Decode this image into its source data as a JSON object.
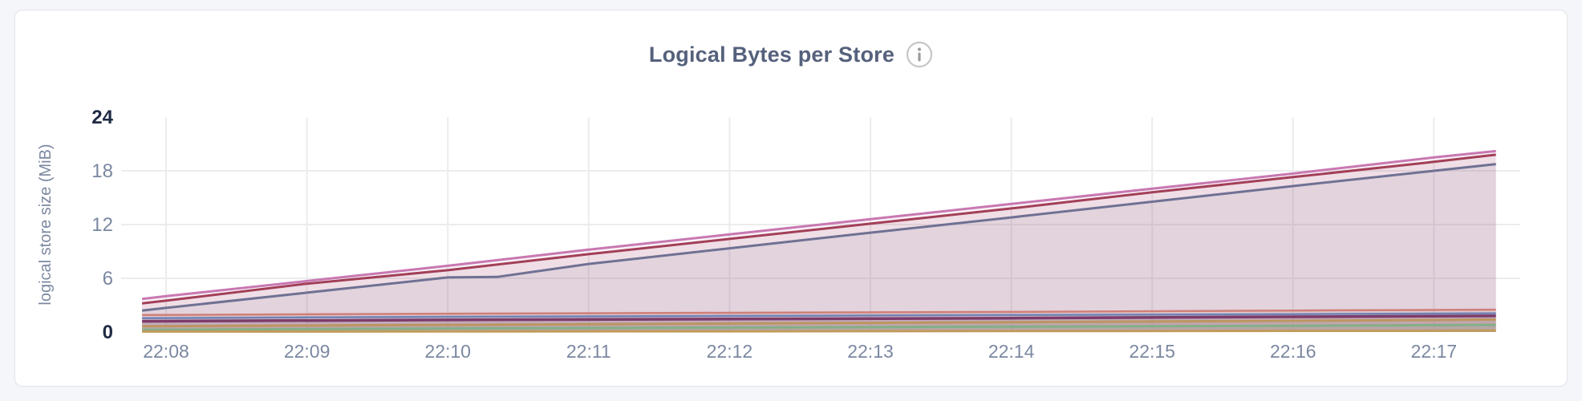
{
  "page": {
    "background": "#f5f6fa"
  },
  "card": {
    "background": "#ffffff",
    "border_color": "#e4e5e9"
  },
  "header": {
    "title": "Logical Bytes per Store",
    "info_icon": {
      "name": "info-icon",
      "stroke": "#c6c6c6",
      "glyph_color": "#9b9b9b"
    }
  },
  "axis_style": {
    "tick_color": "#7b88a1",
    "extreme_tick_color": "#1f2a44",
    "grid_color": "#ececec"
  },
  "chart_data": {
    "type": "line",
    "title": "Logical Bytes per Store",
    "xlabel": "",
    "ylabel": "logical store size (MiB)",
    "x_tick_labels": [
      "22:08",
      "22:09",
      "22:10",
      "22:11",
      "22:12",
      "22:13",
      "22:14",
      "22:15",
      "22:16",
      "22:17"
    ],
    "y_ticks": [
      0,
      6,
      12,
      18,
      24
    ],
    "ylim": [
      0,
      24
    ],
    "x_range_minutes": [
      -0.17,
      9.44
    ],
    "grid": true,
    "legend": "none",
    "series": [
      {
        "name": "series-1-orchid",
        "color": "#c878b1",
        "stroke_width": 3,
        "fill_opacity": 0.1,
        "points": [
          [
            -0.17,
            3.7
          ],
          [
            0,
            4.0
          ],
          [
            1,
            5.7
          ],
          [
            2,
            7.4
          ],
          [
            3,
            9.2
          ],
          [
            4,
            10.9
          ],
          [
            5,
            12.6
          ],
          [
            6,
            14.3
          ],
          [
            7,
            16.0
          ],
          [
            8,
            17.7
          ],
          [
            9,
            19.5
          ],
          [
            9.44,
            20.2
          ]
        ]
      },
      {
        "name": "series-2-crimson",
        "color": "#a23f58",
        "stroke_width": 3,
        "fill_opacity": 0.1,
        "points": [
          [
            -0.17,
            3.2
          ],
          [
            0,
            3.5
          ],
          [
            1,
            5.4
          ],
          [
            1.6,
            6.3
          ],
          [
            2,
            6.9
          ],
          [
            3,
            8.7
          ],
          [
            4,
            10.4
          ],
          [
            5,
            12.1
          ],
          [
            6,
            13.8
          ],
          [
            7,
            15.6
          ],
          [
            8,
            17.3
          ],
          [
            9,
            19.0
          ],
          [
            9.44,
            19.8
          ]
        ]
      },
      {
        "name": "series-3-slate",
        "color": "#6f7193",
        "stroke_width": 3,
        "fill_opacity": 0.1,
        "points": [
          [
            -0.17,
            2.4
          ],
          [
            0,
            2.7
          ],
          [
            1,
            4.4
          ],
          [
            2,
            6.1
          ],
          [
            2.35,
            6.15
          ],
          [
            3,
            7.6
          ],
          [
            4,
            9.35
          ],
          [
            5,
            11.1
          ],
          [
            6,
            12.8
          ],
          [
            7,
            14.55
          ],
          [
            8,
            16.3
          ],
          [
            9,
            18.0
          ],
          [
            9.44,
            18.75
          ]
        ]
      },
      {
        "name": "series-4-salmon",
        "color": "#cf7f77",
        "stroke_width": 2.5,
        "fill_opacity": 0.14,
        "points": [
          [
            -0.17,
            1.9
          ],
          [
            2,
            2.05
          ],
          [
            4,
            2.15
          ],
          [
            6,
            2.25
          ],
          [
            8,
            2.4
          ],
          [
            9.44,
            2.5
          ]
        ]
      },
      {
        "name": "series-5-blue",
        "color": "#7082b4",
        "stroke_width": 2.5,
        "fill_opacity": 0.14,
        "points": [
          [
            -0.17,
            1.55
          ],
          [
            2,
            1.7
          ],
          [
            4,
            1.8
          ],
          [
            6,
            1.9
          ],
          [
            8,
            2.0
          ],
          [
            9.44,
            2.1
          ]
        ]
      },
      {
        "name": "series-6-plum",
        "color": "#7d3c69",
        "stroke_width": 3.5,
        "fill_opacity": 0.14,
        "points": [
          [
            -0.17,
            1.2
          ],
          [
            2,
            1.35
          ],
          [
            4,
            1.45
          ],
          [
            6,
            1.55
          ],
          [
            8,
            1.7
          ],
          [
            9.44,
            1.8
          ]
        ]
      },
      {
        "name": "series-7-tan",
        "color": "#bb9660",
        "stroke_width": 3,
        "fill_opacity": 0.16,
        "points": [
          [
            -0.17,
            0.65
          ],
          [
            2,
            0.8
          ],
          [
            4,
            0.95
          ],
          [
            6,
            1.1
          ],
          [
            8,
            1.25
          ],
          [
            9.44,
            1.4
          ]
        ]
      },
      {
        "name": "series-8-green",
        "color": "#83af88",
        "stroke_width": 3,
        "fill_opacity": 0.16,
        "points": [
          [
            -0.17,
            0.25
          ],
          [
            2,
            0.4
          ],
          [
            4,
            0.5
          ],
          [
            6,
            0.6
          ],
          [
            8,
            0.7
          ],
          [
            9.44,
            0.8
          ]
        ]
      },
      {
        "name": "series-9-gold",
        "color": "#c19b5c",
        "stroke_width": 3,
        "fill_opacity": 0.16,
        "points": [
          [
            -0.17,
            0.05
          ],
          [
            4,
            0.08
          ],
          [
            9.44,
            0.15
          ]
        ]
      }
    ]
  }
}
